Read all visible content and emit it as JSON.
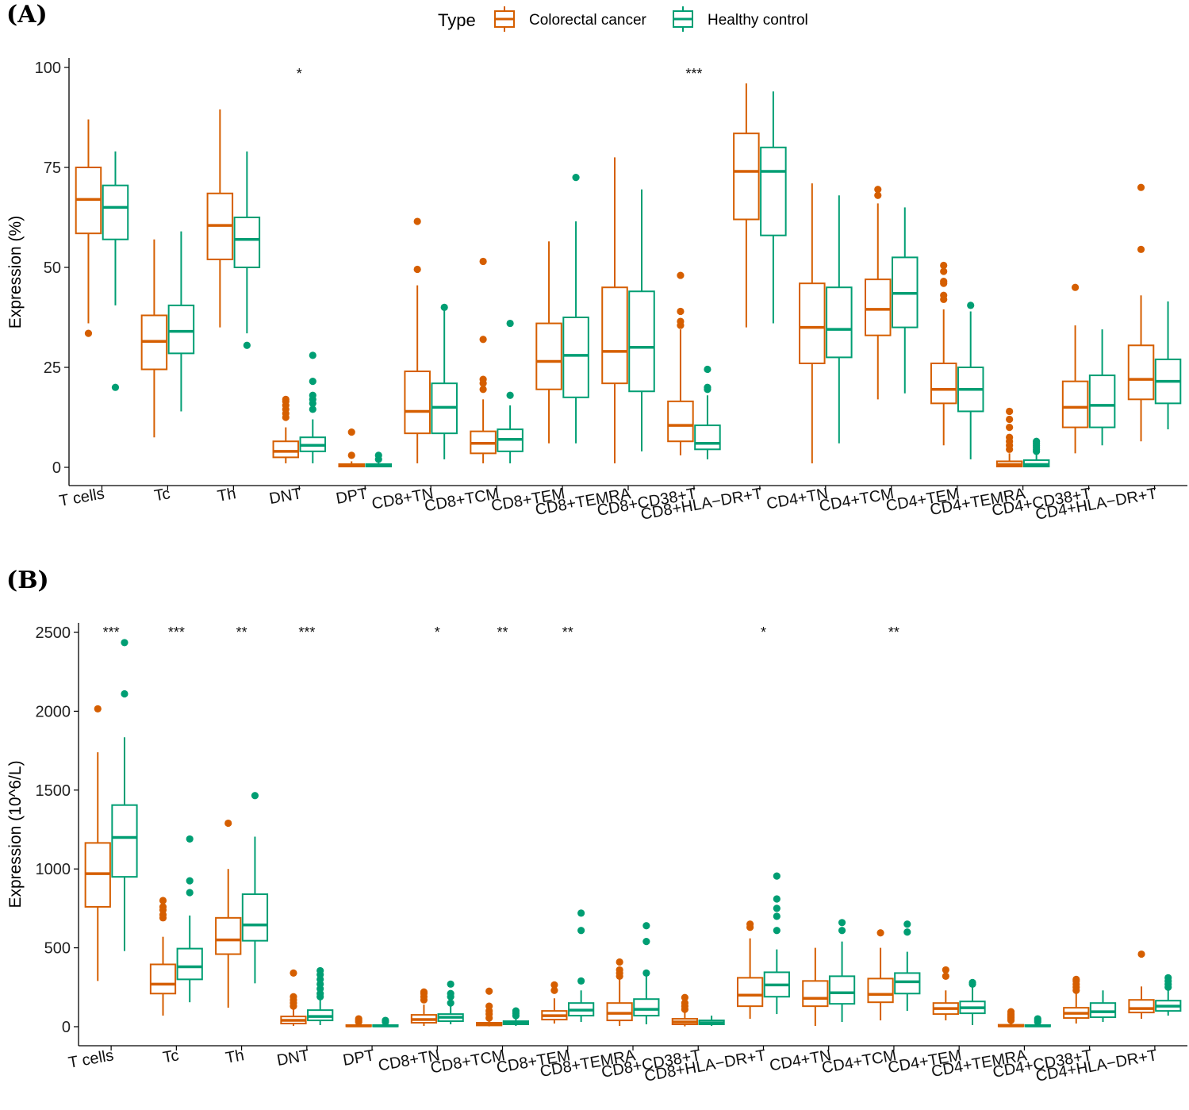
{
  "legend": {
    "title": "Type",
    "items": [
      {
        "label": "Colorectal cancer",
        "color": "#D55E00"
      },
      {
        "label": "Healthy control",
        "color": "#009E73"
      }
    ]
  },
  "chart_data": [
    {
      "type": "box",
      "panel_label": "(A)",
      "ylabel": "Expression (%)",
      "ylim": [
        0,
        100
      ],
      "yticks": [
        0,
        25,
        50,
        75,
        100
      ],
      "categories": [
        "T cells",
        "Tc",
        "Th",
        "DNT",
        "DPT",
        "CD8+TN",
        "CD8+TCM",
        "CD8+TEM",
        "CD8+TEMRA",
        "CD8+CD38+T",
        "CD8+HLA−DR+T",
        "CD4+TN",
        "CD4+TCM",
        "CD4+TEM",
        "CD4+TEMRA",
        "CD4+CD38+T",
        "CD4+HLA−DR+T"
      ],
      "significance": [
        "",
        "",
        "",
        "*",
        "",
        "",
        "",
        "",
        "",
        "***",
        "",
        "",
        "",
        "",
        "",
        "",
        ""
      ],
      "series": [
        {
          "name": "Colorectal cancer",
          "boxes": [
            {
              "whislo": 36,
              "q1": 58.5,
              "med": 67,
              "q3": 75,
              "whishi": 87,
              "fliers": [
                33.5
              ]
            },
            {
              "whislo": 7.5,
              "q1": 24.5,
              "med": 31.5,
              "q3": 38,
              "whishi": 57,
              "fliers": []
            },
            {
              "whislo": 35,
              "q1": 52,
              "med": 60.5,
              "q3": 68.5,
              "whishi": 89.5,
              "fliers": []
            },
            {
              "whislo": 1,
              "q1": 2.5,
              "med": 4,
              "q3": 6.5,
              "whishi": 10,
              "fliers": [
                12.5,
                13.5,
                14.5,
                15.5,
                16.5,
                17
              ]
            },
            {
              "whislo": 0,
              "q1": 0.2,
              "med": 0.5,
              "q3": 0.8,
              "whishi": 1.5,
              "fliers": [
                3,
                8.8
              ]
            },
            {
              "whislo": 1,
              "q1": 8.5,
              "med": 14,
              "q3": 24,
              "whishi": 45.5,
              "fliers": [
                49.5,
                61.5
              ]
            },
            {
              "whislo": 1,
              "q1": 3.5,
              "med": 6,
              "q3": 9,
              "whishi": 17,
              "fliers": [
                19.5,
                21,
                22,
                32,
                51.5
              ]
            },
            {
              "whislo": 6,
              "q1": 19.5,
              "med": 26.5,
              "q3": 36,
              "whishi": 56.5,
              "fliers": []
            },
            {
              "whislo": 1,
              "q1": 21,
              "med": 29,
              "q3": 45,
              "whishi": 77.5,
              "fliers": []
            },
            {
              "whislo": 3,
              "q1": 6.5,
              "med": 10.5,
              "q3": 16.5,
              "whishi": 34.5,
              "fliers": [
                35.5,
                36.5,
                39,
                48
              ]
            },
            {
              "whislo": 35,
              "q1": 62,
              "med": 74,
              "q3": 83.5,
              "whishi": 96,
              "fliers": []
            },
            {
              "whislo": 1,
              "q1": 26,
              "med": 35,
              "q3": 46,
              "whishi": 71,
              "fliers": []
            },
            {
              "whislo": 17,
              "q1": 33,
              "med": 39.5,
              "q3": 47,
              "whishi": 66,
              "fliers": [
                68,
                69.5
              ]
            },
            {
              "whislo": 5.5,
              "q1": 16,
              "med": 19.5,
              "q3": 26,
              "whishi": 39.5,
              "fliers": [
                42,
                43,
                46,
                46.5,
                49,
                50.5
              ]
            },
            {
              "whislo": 0,
              "q1": 0.2,
              "med": 0.7,
              "q3": 1.5,
              "whishi": 3.5,
              "fliers": [
                4.5,
                5.5,
                6.5,
                7.5,
                10,
                12,
                14
              ]
            },
            {
              "whislo": 3.5,
              "q1": 10,
              "med": 15,
              "q3": 21.5,
              "whishi": 35.5,
              "fliers": [
                45
              ]
            },
            {
              "whislo": 6.5,
              "q1": 17,
              "med": 22,
              "q3": 30.5,
              "whishi": 43,
              "fliers": [
                54.5,
                70
              ]
            }
          ]
        },
        {
          "name": "Healthy control",
          "boxes": [
            {
              "whislo": 40.5,
              "q1": 57,
              "med": 65,
              "q3": 70.5,
              "whishi": 79,
              "fliers": [
                20
              ]
            },
            {
              "whislo": 14,
              "q1": 28.5,
              "med": 34,
              "q3": 40.5,
              "whishi": 59,
              "fliers": []
            },
            {
              "whislo": 33.5,
              "q1": 50,
              "med": 57,
              "q3": 62.5,
              "whishi": 79,
              "fliers": [
                30.5
              ]
            },
            {
              "whislo": 1,
              "q1": 4,
              "med": 5.5,
              "q3": 7.5,
              "whishi": 12,
              "fliers": [
                14.5,
                16,
                17,
                18,
                21.5,
                28
              ]
            },
            {
              "whislo": 0,
              "q1": 0.2,
              "med": 0.5,
              "q3": 0.8,
              "whishi": 1.5,
              "fliers": [
                2,
                3
              ]
            },
            {
              "whislo": 2,
              "q1": 8.5,
              "med": 15,
              "q3": 21,
              "whishi": 39.5,
              "fliers": [
                40
              ]
            },
            {
              "whislo": 1,
              "q1": 4,
              "med": 7,
              "q3": 9.5,
              "whishi": 15.5,
              "fliers": [
                18,
                36
              ]
            },
            {
              "whislo": 6,
              "q1": 17.5,
              "med": 28,
              "q3": 37.5,
              "whishi": 61.5,
              "fliers": [
                72.5
              ]
            },
            {
              "whislo": 4,
              "q1": 19,
              "med": 30,
              "q3": 44,
              "whishi": 69.5,
              "fliers": []
            },
            {
              "whislo": 2,
              "q1": 4.5,
              "med": 6,
              "q3": 10.5,
              "whishi": 18,
              "fliers": [
                19.5,
                20,
                24.5
              ]
            },
            {
              "whislo": 36,
              "q1": 58,
              "med": 74,
              "q3": 80,
              "whishi": 94,
              "fliers": []
            },
            {
              "whislo": 6,
              "q1": 27.5,
              "med": 34.5,
              "q3": 45,
              "whishi": 68,
              "fliers": []
            },
            {
              "whislo": 18.5,
              "q1": 35,
              "med": 43.5,
              "q3": 52.5,
              "whishi": 65,
              "fliers": []
            },
            {
              "whislo": 2,
              "q1": 14,
              "med": 19.5,
              "q3": 25,
              "whishi": 39,
              "fliers": [
                40.5
              ]
            },
            {
              "whislo": 0,
              "q1": 0.2,
              "med": 0.7,
              "q3": 1.8,
              "whishi": 3.5,
              "fliers": [
                4,
                4.5,
                5,
                5.5,
                6,
                6.5
              ]
            },
            {
              "whislo": 5.5,
              "q1": 10,
              "med": 15.5,
              "q3": 23,
              "whishi": 34.5,
              "fliers": []
            },
            {
              "whislo": 9.5,
              "q1": 16,
              "med": 21.5,
              "q3": 27,
              "whishi": 41.5,
              "fliers": []
            }
          ]
        }
      ]
    },
    {
      "type": "box",
      "panel_label": "(B)",
      "ylabel": "Expression (10^6/L)",
      "ylim": [
        0,
        2500
      ],
      "yticks": [
        0,
        500,
        1000,
        1500,
        2000,
        2500
      ],
      "categories": [
        "T cells",
        "Tc",
        "Th",
        "DNT",
        "DPT",
        "CD8+TN",
        "CD8+TCM",
        "CD8+TEM",
        "CD8+TEMRA",
        "CD8+CD38+T",
        "CD8+HLA−DR+T",
        "CD4+TN",
        "CD4+TCM",
        "CD4+TEM",
        "CD4+TEMRA",
        "CD4+CD38+T",
        "CD4+HLA−DR+T"
      ],
      "significance": [
        "***",
        "***",
        "**",
        "***",
        "",
        "*",
        "**",
        "**",
        "",
        "",
        "*",
        "",
        "**",
        "",
        "",
        "",
        ""
      ],
      "series": [
        {
          "name": "Colorectal cancer",
          "boxes": [
            {
              "whislo": 290,
              "q1": 760,
              "med": 970,
              "q3": 1165,
              "whishi": 1740,
              "fliers": [
                2015
              ]
            },
            {
              "whislo": 70,
              "q1": 210,
              "med": 270,
              "q3": 395,
              "whishi": 570,
              "fliers": [
                690,
                710,
                740,
                760,
                800
              ]
            },
            {
              "whislo": 120,
              "q1": 460,
              "med": 550,
              "q3": 690,
              "whishi": 1000,
              "fliers": [
                1290
              ]
            },
            {
              "whislo": 5,
              "q1": 20,
              "med": 40,
              "q3": 65,
              "whishi": 110,
              "fliers": [
                130,
                150,
                170,
                190,
                340
              ]
            },
            {
              "whislo": 0,
              "q1": 2,
              "med": 5,
              "q3": 10,
              "whishi": 20,
              "fliers": [
                30,
                40,
                50
              ]
            },
            {
              "whislo": 5,
              "q1": 25,
              "med": 45,
              "q3": 75,
              "whishi": 140,
              "fliers": [
                170,
                190,
                210,
                220
              ]
            },
            {
              "whislo": 2,
              "q1": 8,
              "med": 15,
              "q3": 25,
              "whishi": 45,
              "fliers": [
                55,
                80,
                100,
                130,
                225
              ]
            },
            {
              "whislo": 20,
              "q1": 45,
              "med": 70,
              "q3": 100,
              "whishi": 180,
              "fliers": [
                230,
                265
              ]
            },
            {
              "whislo": 5,
              "q1": 40,
              "med": 85,
              "q3": 150,
              "whishi": 300,
              "fliers": [
                320,
                340,
                360,
                410
              ]
            },
            {
              "whislo": 2,
              "q1": 15,
              "med": 30,
              "q3": 50,
              "whishi": 90,
              "fliers": [
                110,
                130,
                150,
                185
              ]
            },
            {
              "whislo": 50,
              "q1": 130,
              "med": 200,
              "q3": 310,
              "whishi": 560,
              "fliers": [
                630,
                650
              ]
            },
            {
              "whislo": 5,
              "q1": 130,
              "med": 180,
              "q3": 290,
              "whishi": 500,
              "fliers": []
            },
            {
              "whislo": 40,
              "q1": 155,
              "med": 205,
              "q3": 305,
              "whishi": 500,
              "fliers": [
                595
              ]
            },
            {
              "whislo": 40,
              "q1": 80,
              "med": 115,
              "q3": 150,
              "whishi": 230,
              "fliers": [
                320,
                360
              ]
            },
            {
              "whislo": 0,
              "q1": 2,
              "med": 5,
              "q3": 12,
              "whishi": 30,
              "fliers": [
                40,
                50,
                60,
                70,
                80,
                95
              ]
            },
            {
              "whislo": 20,
              "q1": 55,
              "med": 85,
              "q3": 120,
              "whishi": 210,
              "fliers": [
                230,
                250,
                270,
                290,
                300
              ]
            },
            {
              "whislo": 50,
              "q1": 90,
              "med": 115,
              "q3": 170,
              "whishi": 255,
              "fliers": [
                460
              ]
            }
          ]
        },
        {
          "name": "Healthy control",
          "boxes": [
            {
              "whislo": 480,
              "q1": 950,
              "med": 1200,
              "q3": 1405,
              "whishi": 1835,
              "fliers": [
                2110,
                2435
              ]
            },
            {
              "whislo": 155,
              "q1": 300,
              "med": 380,
              "q3": 495,
              "whishi": 705,
              "fliers": [
                850,
                925,
                1190
              ]
            },
            {
              "whislo": 275,
              "q1": 545,
              "med": 645,
              "q3": 840,
              "whishi": 1205,
              "fliers": [
                1465
              ]
            },
            {
              "whislo": 10,
              "q1": 40,
              "med": 65,
              "q3": 105,
              "whishi": 170,
              "fliers": [
                190,
                210,
                240,
                270,
                300,
                330,
                355
              ]
            },
            {
              "whislo": 0,
              "q1": 2,
              "med": 5,
              "q3": 10,
              "whishi": 20,
              "fliers": [
                30,
                40
              ]
            },
            {
              "whislo": 15,
              "q1": 35,
              "med": 60,
              "q3": 80,
              "whishi": 130,
              "fliers": [
                150,
                190,
                210,
                270
              ]
            },
            {
              "whislo": 5,
              "q1": 15,
              "med": 25,
              "q3": 35,
              "whishi": 55,
              "fliers": [
                70,
                85,
                100
              ]
            },
            {
              "whislo": 30,
              "q1": 70,
              "med": 105,
              "q3": 150,
              "whishi": 230,
              "fliers": [
                290,
                610,
                720
              ]
            },
            {
              "whislo": 15,
              "q1": 70,
              "med": 110,
              "q3": 175,
              "whishi": 320,
              "fliers": [
                340,
                540,
                640
              ]
            },
            {
              "whislo": 5,
              "q1": 15,
              "med": 25,
              "q3": 40,
              "whishi": 70,
              "fliers": []
            },
            {
              "whislo": 80,
              "q1": 190,
              "med": 265,
              "q3": 345,
              "whishi": 490,
              "fliers": [
                610,
                700,
                750,
                810,
                955
              ]
            },
            {
              "whislo": 30,
              "q1": 145,
              "med": 215,
              "q3": 320,
              "whishi": 540,
              "fliers": [
                610,
                660
              ]
            },
            {
              "whislo": 100,
              "q1": 210,
              "med": 285,
              "q3": 340,
              "whishi": 475,
              "fliers": [
                600,
                650
              ]
            },
            {
              "whislo": 10,
              "q1": 85,
              "med": 120,
              "q3": 160,
              "whishi": 255,
              "fliers": [
                270,
                280
              ]
            },
            {
              "whislo": 0,
              "q1": 2,
              "med": 5,
              "q3": 10,
              "whishi": 20,
              "fliers": [
                30,
                40,
                50
              ]
            },
            {
              "whislo": 30,
              "q1": 60,
              "med": 95,
              "q3": 150,
              "whishi": 230,
              "fliers": []
            },
            {
              "whislo": 70,
              "q1": 100,
              "med": 130,
              "q3": 165,
              "whishi": 230,
              "fliers": [
                250,
                270,
                290,
                310
              ]
            }
          ]
        }
      ]
    }
  ]
}
